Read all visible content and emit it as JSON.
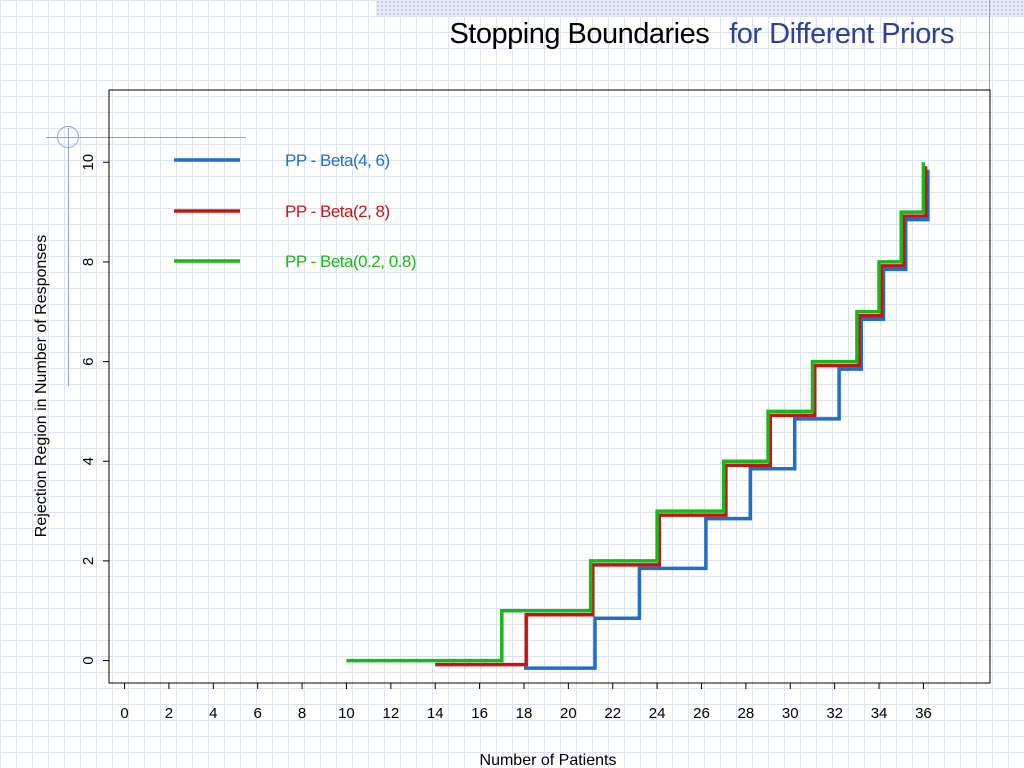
{
  "slide": {
    "title_main": "Stopping Boundaries",
    "title_sub": "for Different Priors"
  },
  "colors": {
    "blue": "#1f6fc6",
    "red": "#c41515",
    "green": "#19b81a",
    "title_sub": "#2e3f94",
    "grid": "#dde2f0"
  },
  "chart_data": {
    "type": "line",
    "step": true,
    "xlabel": "Number of Patients",
    "ylabel": "Rejection Region in Number of Responses",
    "xlim": [
      -0.7,
      39.0
    ],
    "ylim": [
      -0.45,
      11.45
    ],
    "x_ticks": [
      "0",
      "2",
      "4",
      "6",
      "8",
      "10",
      "12",
      "14",
      "16",
      "18",
      "20",
      "22",
      "24",
      "26",
      "28",
      "30",
      "32",
      "34",
      "36"
    ],
    "y_ticks": [
      "0",
      "2",
      "4",
      "6",
      "8",
      "10"
    ],
    "legend_position": "top-left",
    "grid": false,
    "series": [
      {
        "name": "PP - Beta(4, 6)",
        "color": "#1f6fc6",
        "points": [
          [
            18,
            -0.15
          ],
          [
            21.2,
            -0.15
          ],
          [
            21.2,
            0.85
          ],
          [
            23.2,
            0.85
          ],
          [
            23.2,
            1.85
          ],
          [
            26.2,
            1.85
          ],
          [
            26.2,
            2.85
          ],
          [
            28.2,
            2.85
          ],
          [
            28.2,
            3.85
          ],
          [
            30.2,
            3.85
          ],
          [
            30.2,
            4.85
          ],
          [
            32.2,
            4.85
          ],
          [
            32.2,
            5.85
          ],
          [
            33.2,
            5.85
          ],
          [
            33.2,
            6.85
          ],
          [
            34.2,
            6.85
          ],
          [
            34.2,
            7.85
          ],
          [
            35.2,
            7.85
          ],
          [
            35.2,
            8.85
          ],
          [
            36.2,
            8.85
          ],
          [
            36.2,
            9.85
          ]
        ]
      },
      {
        "name": "PP - Beta(2, 8)",
        "color": "#c41515",
        "points": [
          [
            14,
            -0.08
          ],
          [
            18.1,
            -0.08
          ],
          [
            18.1,
            0.92
          ],
          [
            21.1,
            0.92
          ],
          [
            21.1,
            1.92
          ],
          [
            24.1,
            1.92
          ],
          [
            24.1,
            2.92
          ],
          [
            27.1,
            2.92
          ],
          [
            27.1,
            3.92
          ],
          [
            29.1,
            3.92
          ],
          [
            29.1,
            4.92
          ],
          [
            31.1,
            4.92
          ],
          [
            31.1,
            5.92
          ],
          [
            33.1,
            5.92
          ],
          [
            33.1,
            6.92
          ],
          [
            34.1,
            6.92
          ],
          [
            34.1,
            7.92
          ],
          [
            35.1,
            7.92
          ],
          [
            35.1,
            8.92
          ],
          [
            36.1,
            8.92
          ],
          [
            36.1,
            9.92
          ]
        ]
      },
      {
        "name": "PP - Beta(0.2, 0.8)",
        "color": "#19b81a",
        "points": [
          [
            10,
            0
          ],
          [
            17,
            0
          ],
          [
            17,
            1
          ],
          [
            21,
            1
          ],
          [
            21,
            2
          ],
          [
            24,
            2
          ],
          [
            24,
            3
          ],
          [
            27,
            3
          ],
          [
            27,
            4
          ],
          [
            29,
            4
          ],
          [
            29,
            5
          ],
          [
            31,
            5
          ],
          [
            31,
            6
          ],
          [
            33,
            6
          ],
          [
            33,
            7
          ],
          [
            34,
            7
          ],
          [
            34,
            8
          ],
          [
            35,
            8
          ],
          [
            35,
            9
          ],
          [
            36,
            9
          ],
          [
            36,
            10
          ]
        ]
      }
    ]
  }
}
